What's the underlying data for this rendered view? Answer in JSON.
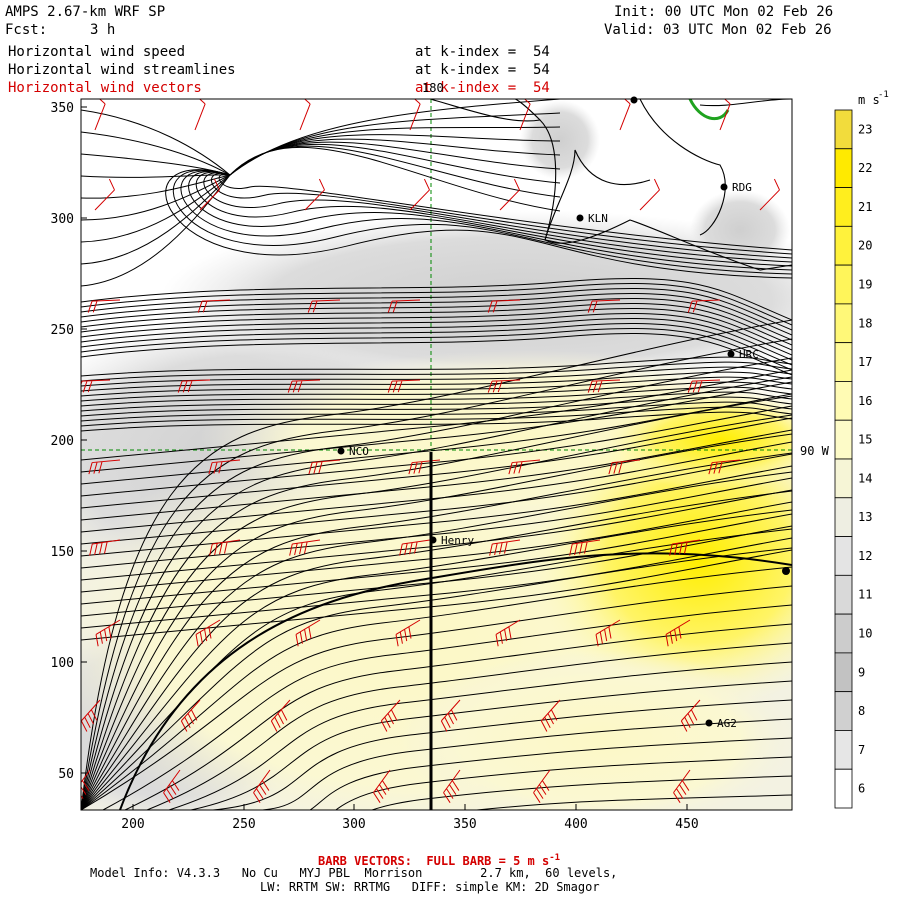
{
  "header": {
    "model": "AMPS 2.67-km WRF SP",
    "fcst_label": "Fcst:",
    "fcst_value": "3 h",
    "init": "Init: 00 UTC Mon 02 Feb 26",
    "valid": "Valid: 03 UTC Mon 02 Feb 26"
  },
  "fields": [
    {
      "name": "Horizontal wind speed",
      "level": "at k-index =  54",
      "color": "#000000"
    },
    {
      "name": "Horizontal wind streamlines",
      "level": "at k-index =  54",
      "color": "#000000"
    },
    {
      "name": "Horizontal wind vectors",
      "level": "at k-index =  54",
      "color": "#d40000"
    }
  ],
  "axes": {
    "x_ticks": [
      "200",
      "250",
      "300",
      "350",
      "400",
      "450"
    ],
    "y_ticks": [
      "350",
      "300",
      "250",
      "200",
      "150",
      "100",
      "50"
    ]
  },
  "grid_labels": {
    "lon_180": "180",
    "lat_90w": "90 W"
  },
  "stations": [
    {
      "id": "KLN",
      "label": "KLN"
    },
    {
      "id": "RDG",
      "label": "RDG"
    },
    {
      "id": "HRC",
      "label": "HRC"
    },
    {
      "id": "NCO",
      "label": "NCO"
    },
    {
      "id": "Henry",
      "label": "Henry"
    },
    {
      "id": "AG2",
      "label": "AG2"
    }
  ],
  "colorbar": {
    "unit": "m s",
    "unit_exp": "-1",
    "labels": [
      "23",
      "22",
      "21",
      "20",
      "19",
      "18",
      "17",
      "16",
      "15",
      "14",
      "13",
      "12",
      "11",
      "10",
      "9",
      "8",
      "7",
      "6"
    ],
    "colors": [
      "#f2dc3c",
      "#ffea00",
      "#ffee1e",
      "#fff23c",
      "#fff55a",
      "#fff878",
      "#fffa96",
      "#fffbb4",
      "#fdfbc8",
      "#f6f5d6",
      "#eeeee2",
      "#e4e4e4",
      "#d9d9d9",
      "#cccccc",
      "#c2c2c2",
      "#d0d0d0",
      "#e6e6e6",
      "#ffffff"
    ]
  },
  "colors": {
    "barb": "#d40000",
    "streamline": "#000000",
    "coast": "#000000",
    "gridline": "#008800",
    "strong_wind": "#ffee00",
    "moderate_wind": "#fbf7c4",
    "weak_wind": "#d8d8d8"
  },
  "footer": {
    "barb_note": "BARB VECTORS:  FULL BARB = 5 m s",
    "barb_exp": "-1",
    "model_info": "Model Info: V4.3.3   No Cu   MYJ PBL  Morrison        2.7 km,  60 levels,",
    "physics": "LW: RRTM SW: RRTMG   DIFF: simple KM: 2D Smagor"
  }
}
